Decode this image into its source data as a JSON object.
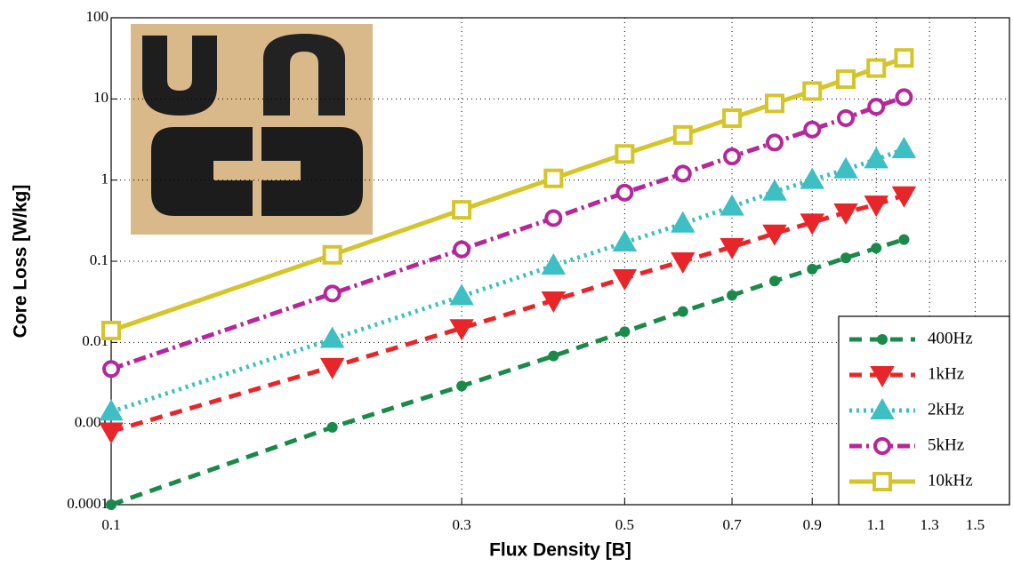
{
  "chart_data": {
    "type": "line",
    "xlabel": "Flux Density [B]",
    "ylabel": "Core Loss [W/kg]",
    "xscale": "log",
    "yscale": "log",
    "xlim": [
      0.1,
      1.67
    ],
    "ylim": [
      0.0001,
      100
    ],
    "xticks": [
      0.1,
      0.3,
      0.5,
      0.7,
      0.9,
      1.1,
      1.3,
      1.5
    ],
    "yticks": [
      0.0001,
      0.001,
      0.01,
      0.1,
      1,
      10,
      100
    ],
    "grid": true,
    "legend": "lower right",
    "x": [
      0.1,
      0.2,
      0.3,
      0.4,
      0.5,
      0.6,
      0.7,
      0.8,
      0.9,
      1.0,
      1.1,
      1.2
    ],
    "series": [
      {
        "name": "400Hz",
        "color": "#1a8a4a",
        "linestyle": "dashed",
        "marker": "filled-circle",
        "values": [
          0.0001,
          0.0009,
          0.0029,
          0.0068,
          0.0135,
          0.024,
          0.038,
          0.057,
          0.08,
          0.11,
          0.145,
          0.185
        ]
      },
      {
        "name": "1kHz",
        "color": "#e8262a",
        "linestyle": "dashed",
        "marker": "triangle-down",
        "values": [
          0.0008,
          0.005,
          0.015,
          0.033,
          0.062,
          0.1,
          0.15,
          0.22,
          0.3,
          0.4,
          0.5,
          0.65
        ]
      },
      {
        "name": "2kHz",
        "color": "#3dbfc4",
        "linestyle": "dotted",
        "marker": "triangle-up",
        "values": [
          0.0014,
          0.011,
          0.037,
          0.088,
          0.17,
          0.29,
          0.47,
          0.72,
          1.0,
          1.35,
          1.8,
          2.4
        ]
      },
      {
        "name": "5kHz",
        "color": "#b5279a",
        "linestyle": "dashdot",
        "marker": "open-circle",
        "values": [
          0.0047,
          0.04,
          0.14,
          0.34,
          0.7,
          1.2,
          1.95,
          2.9,
          4.2,
          5.8,
          8,
          10.5
        ]
      },
      {
        "name": "10kHz",
        "color": "#d4c52a",
        "linestyle": "solid",
        "marker": "open-square",
        "values": [
          0.014,
          0.12,
          0.43,
          1.05,
          2.1,
          3.6,
          5.8,
          8.8,
          12.5,
          17.5,
          24,
          32
        ]
      }
    ]
  }
}
